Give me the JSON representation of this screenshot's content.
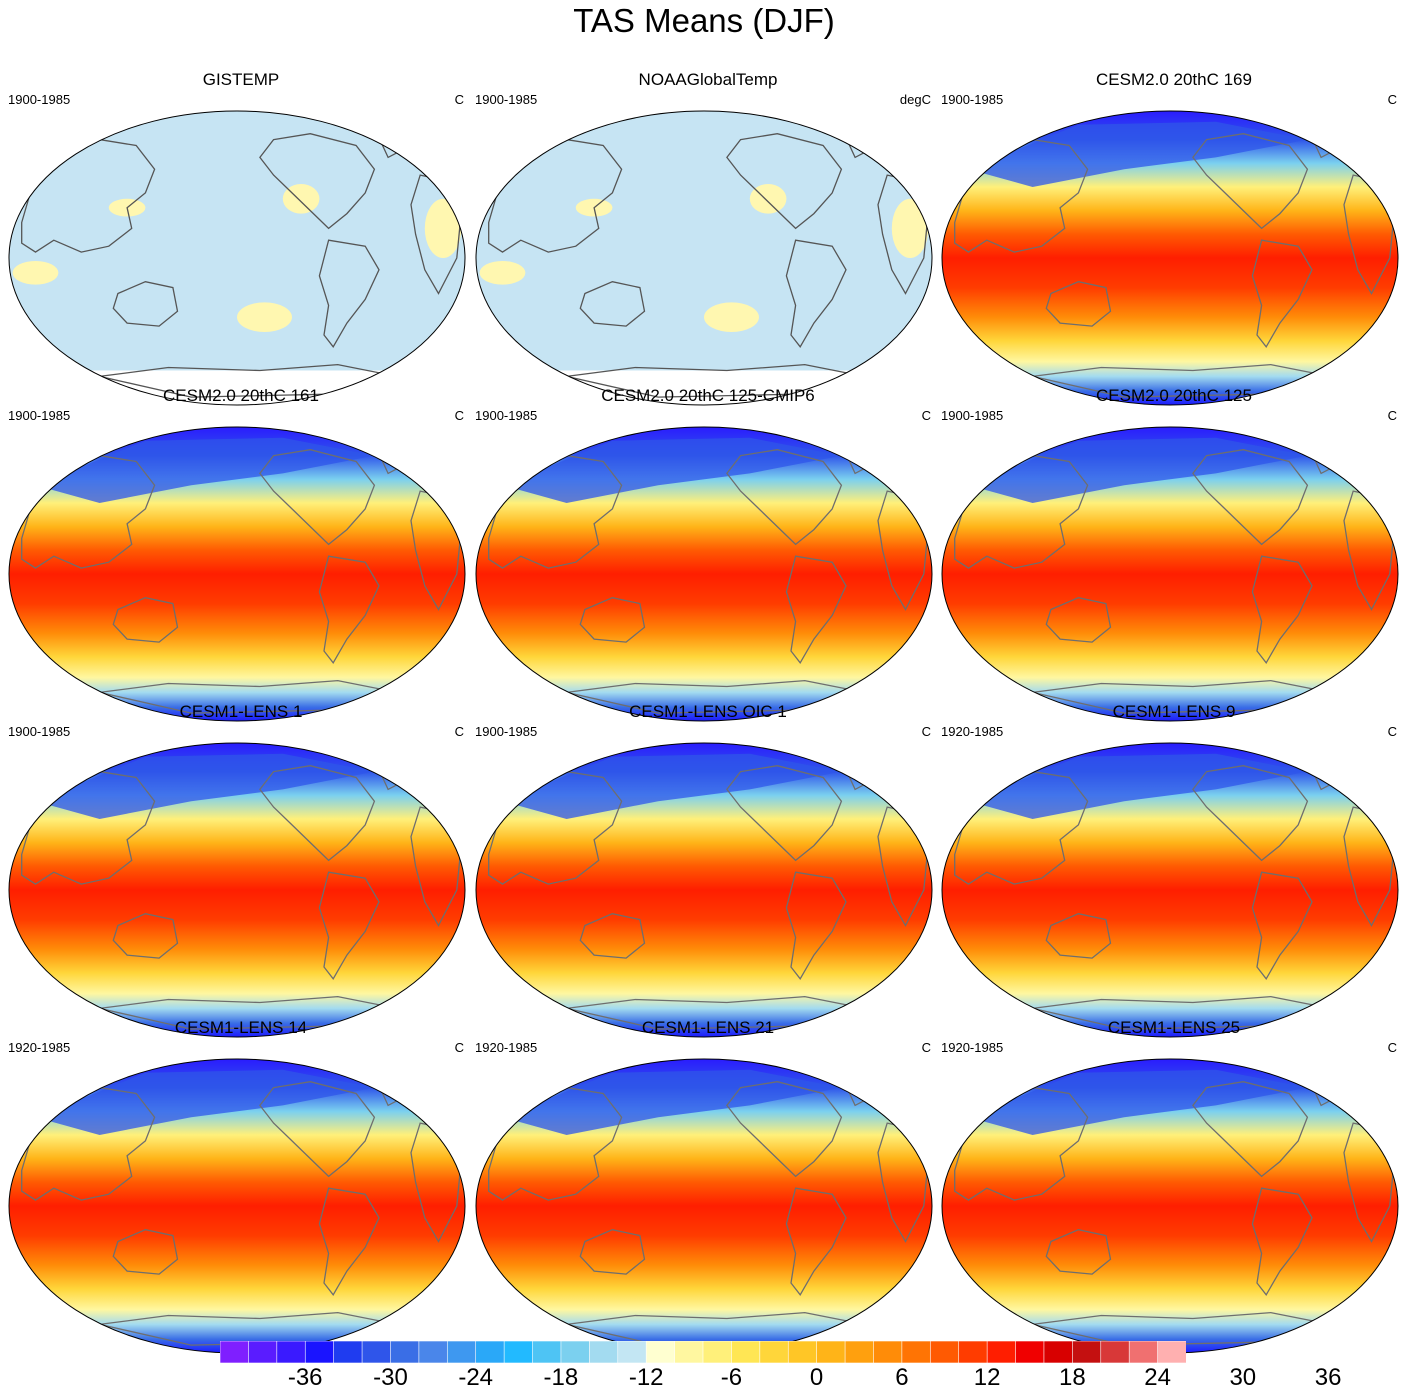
{
  "title": "TAS Means (DJF)",
  "panels": [
    {
      "title": "GISTEMP",
      "period": "1900-1985",
      "units": "C",
      "style": "obs"
    },
    {
      "title": "NOAAGlobalTemp",
      "period": "1900-1985",
      "units": "degC",
      "style": "obs"
    },
    {
      "title": "CESM2.0 20thC 169",
      "period": "1900-1985",
      "units": "C",
      "style": "model"
    },
    {
      "title": "CESM2.0 20thC 161",
      "period": "1900-1985",
      "units": "C",
      "style": "model"
    },
    {
      "title": "CESM2.0 20thC 125-CMIP6",
      "period": "1900-1985",
      "units": "C",
      "style": "model"
    },
    {
      "title": "CESM2.0 20thC 125",
      "period": "1900-1985",
      "units": "C",
      "style": "model"
    },
    {
      "title": "CESM1-LENS 1",
      "period": "1900-1985",
      "units": "C",
      "style": "model"
    },
    {
      "title": "CESM1-LENS OIC 1",
      "period": "1900-1985",
      "units": "C",
      "style": "model"
    },
    {
      "title": "CESM1-LENS 9",
      "period": "1920-1985",
      "units": "C",
      "style": "model"
    },
    {
      "title": "CESM1-LENS 14",
      "period": "1920-1985",
      "units": "C",
      "style": "model"
    },
    {
      "title": "CESM1-LENS 21",
      "period": "1920-1985",
      "units": "C",
      "style": "model"
    },
    {
      "title": "CESM1-LENS 25",
      "period": "1920-1985",
      "units": "C",
      "style": "model"
    }
  ],
  "colorbar": {
    "labels": [
      "-36",
      "-30",
      "-24",
      "-18",
      "-12",
      "-6",
      "0",
      "6",
      "12",
      "18",
      "24",
      "30",
      "36"
    ],
    "colors": [
      "#7f1fff",
      "#5a1cff",
      "#3a1aff",
      "#1a14ff",
      "#1f3cf0",
      "#2f55ea",
      "#3a6ee6",
      "#4a86ea",
      "#3e98f0",
      "#2aa8f8",
      "#22baff",
      "#4ec4f4",
      "#7bd0ef",
      "#a3dbf0",
      "#c3e6f3",
      "#ffffd0",
      "#fff7a0",
      "#fff07a",
      "#ffe654",
      "#ffd63a",
      "#ffc626",
      "#ffb418",
      "#ffa00e",
      "#ff8c08",
      "#ff7404",
      "#ff5a02",
      "#ff3c00",
      "#ff1e00",
      "#f00000",
      "#d80000",
      "#c41010",
      "#d83838",
      "#f07070",
      "#ffb0b0"
    ]
  }
}
